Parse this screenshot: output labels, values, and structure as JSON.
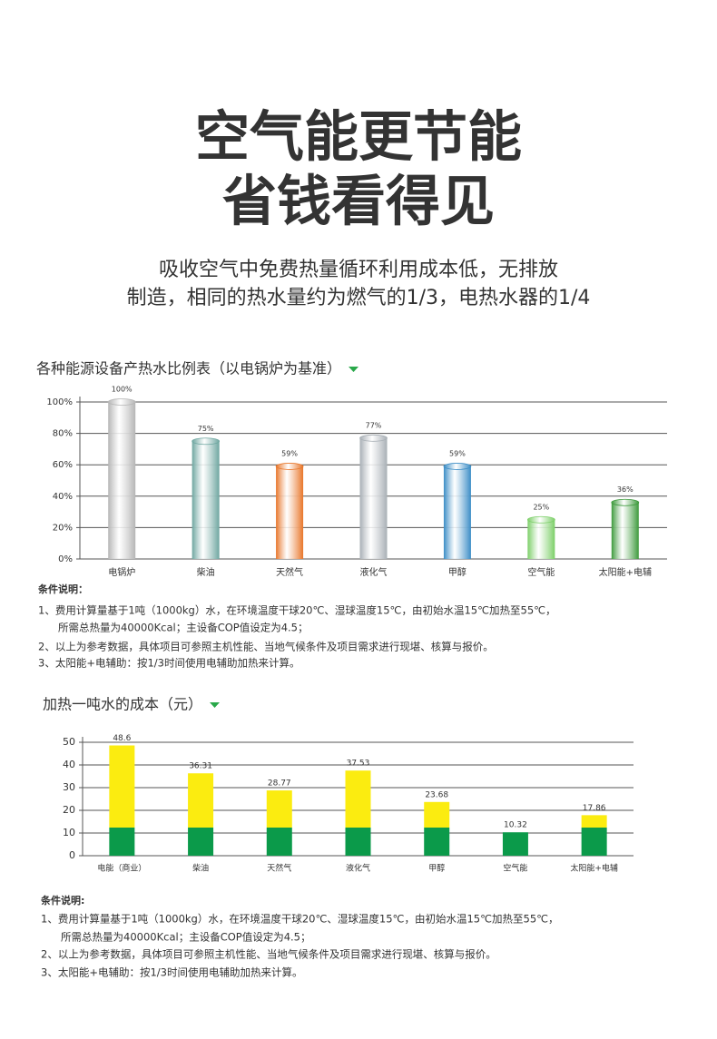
{
  "header": {
    "title_lines": [
      "空气能更节能",
      "省钱看得见"
    ],
    "subtitle_lines": [
      "吸收空气中免费热量循环利用成本低，无排放",
      "制造，相同的热水量约为燃气的1/3，电热水器的1/4"
    ]
  },
  "chart_data": [
    {
      "type": "cylinder-bar",
      "title": "各种能源设备产热水比例表（以电锅炉为基准）",
      "categories": [
        "电锅炉",
        "柴油",
        "天然气",
        "液化气",
        "甲醇",
        "空气能",
        "太阳能+电辅"
      ],
      "values": [
        100,
        75,
        59,
        77,
        59,
        25,
        36
      ],
      "value_labels": [
        "100%",
        "75%",
        "59%",
        "77%",
        "59%",
        "25%",
        "36%"
      ],
      "colors": [
        "#b5b5b5",
        "#6ea6a0",
        "#e8762a",
        "#a8afb5",
        "#3b8dc6",
        "#7ccf68",
        "#3d9a3c"
      ],
      "ylim": [
        0,
        100
      ],
      "yticks": [
        {
          "value": 0,
          "label": "0%"
        },
        {
          "value": 20,
          "label": "20%"
        },
        {
          "value": 40,
          "label": "40%"
        },
        {
          "value": 60,
          "label": "60%"
        },
        {
          "value": 80,
          "label": "80%"
        },
        {
          "value": 100,
          "label": "100%"
        }
      ],
      "grid": true
    },
    {
      "type": "stacked-bar",
      "title": "加热一吨水的成本（元）",
      "categories": [
        "电能（商业）",
        "柴油",
        "天然气",
        "液化气",
        "甲醇",
        "空气能",
        "太阳能+电辅"
      ],
      "series": [
        {
          "color": "#0b9a4a",
          "values": [
            12.4,
            12.4,
            12.4,
            12.4,
            12.4,
            10.32,
            12.4
          ]
        },
        {
          "color": "#fbec10",
          "values": [
            36.2,
            23.91,
            16.37,
            25.13,
            11.28,
            0,
            5.46
          ]
        }
      ],
      "totals": [
        48.6,
        36.31,
        28.77,
        37.53,
        23.68,
        10.32,
        17.86
      ],
      "ylim": [
        0,
        50
      ],
      "yticks": [
        0,
        10,
        20,
        30,
        40,
        50
      ],
      "grid": true
    }
  ],
  "notes": [
    {
      "heading": "条件说明：",
      "lines": [
        "1、费用计算量基于1吨（1000kg）水，在环境温度干球20℃、湿球温度15℃，由初始水温15℃加热至55℃，",
        "所需总热量为40000Kcal；主设备COP值设定为4.5；",
        "2、以上为参考数据，具体项目可参照主机性能、当地气候条件及项目需求进行现堪、核算与报价。",
        "3、太阳能+电辅助：按1/3时间使用电辅助加热来计算。"
      ]
    },
    {
      "heading": "条件说明:",
      "lines": [
        "1、费用计算量基于1吨（1000kg）水，在环境温度干球20℃、湿球温度15℃，由初始水温15℃加热至55℃，",
        "所需总热量为40000Kcal；主设备COP值设定为4.5；",
        "2、以上为参考数据，具体项目可参照主机性能、当地气候条件及项目需求进行现堪、核算与报价。",
        "3、太阳能+电辅助：按1/3时间使用电辅助加热来计算。"
      ]
    }
  ]
}
